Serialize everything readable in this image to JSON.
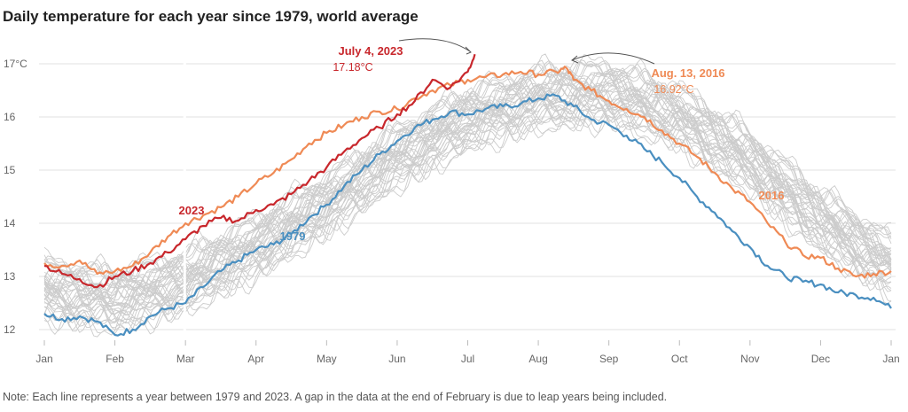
{
  "title": "Daily temperature for each year since 1979, world average",
  "note": "Note: Each line represents a year between 1979 and 2023. A gap in the data at the end of February is due to leap years being included.",
  "colors": {
    "background_years": "#cccccc",
    "y2023": "#c8272c",
    "y2016": "#ef8a55",
    "y1979": "#4a8fc0",
    "grid": "#e2e2e2"
  },
  "chart_data": {
    "type": "line",
    "title": "Daily temperature for each year since 1979, world average",
    "xlabel": "",
    "ylabel": "",
    "x_unit": "month",
    "x_ticks": [
      "Jan",
      "Feb",
      "Mar",
      "Apr",
      "May",
      "Jun",
      "Jul",
      "Aug",
      "Sep",
      "Oct",
      "Nov",
      "Dec",
      "Jan"
    ],
    "y_ticks": [
      "17°C",
      "16",
      "15",
      "14",
      "13",
      "12"
    ],
    "ylim": [
      11.9,
      17.25
    ],
    "grid": true,
    "series": [
      {
        "name": "2023",
        "x": [
          0,
          0.25,
          0.5,
          0.75,
          1.0,
          1.25,
          1.5,
          1.75,
          2.0,
          2.25,
          2.5,
          2.75,
          3.0,
          3.25,
          3.5,
          3.75,
          4.0,
          4.25,
          4.5,
          4.75,
          5.0,
          5.25,
          5.5,
          5.75,
          6.0,
          6.1
        ],
        "values": [
          13.2,
          13.05,
          12.95,
          12.8,
          13.0,
          13.1,
          13.25,
          13.45,
          13.7,
          13.95,
          14.1,
          14.05,
          14.25,
          14.35,
          14.55,
          14.8,
          15.05,
          15.35,
          15.6,
          15.8,
          16.05,
          16.3,
          16.7,
          16.55,
          16.85,
          17.18
        ]
      },
      {
        "name": "2016",
        "x": [
          0,
          0.25,
          0.5,
          0.75,
          1.0,
          1.25,
          1.5,
          1.75,
          2.0,
          2.25,
          2.5,
          2.75,
          3.0,
          3.25,
          3.5,
          3.75,
          4.0,
          4.25,
          4.5,
          4.75,
          5.0,
          5.25,
          5.5,
          5.75,
          6.0,
          6.25,
          6.5,
          6.75,
          7.0,
          7.25,
          7.4,
          7.5,
          7.75,
          8.0,
          8.25,
          8.5,
          8.75,
          9.0,
          9.25,
          9.5,
          9.75,
          10.0,
          10.25,
          10.5,
          10.75,
          11.0,
          11.25,
          11.5,
          11.75,
          12.0
        ],
        "values": [
          13.25,
          13.2,
          13.3,
          13.05,
          13.1,
          13.2,
          13.45,
          13.75,
          14.0,
          14.15,
          14.3,
          14.5,
          14.75,
          14.95,
          15.2,
          15.5,
          15.7,
          15.85,
          16.0,
          16.1,
          16.15,
          16.35,
          16.5,
          16.6,
          16.7,
          16.75,
          16.8,
          16.85,
          16.8,
          16.85,
          16.92,
          16.7,
          16.5,
          16.3,
          16.15,
          16.0,
          15.75,
          15.5,
          15.25,
          14.95,
          14.65,
          14.4,
          14.0,
          13.65,
          13.4,
          13.35,
          13.15,
          13.0,
          13.05,
          13.1
        ]
      },
      {
        "name": "1979",
        "x": [
          0,
          0.25,
          0.5,
          0.75,
          1.0,
          1.25,
          1.5,
          1.75,
          2.0,
          2.25,
          2.5,
          2.75,
          3.0,
          3.25,
          3.5,
          3.75,
          4.0,
          4.25,
          4.5,
          4.75,
          5.0,
          5.25,
          5.5,
          5.75,
          6.0,
          6.25,
          6.5,
          6.75,
          7.0,
          7.25,
          7.5,
          7.75,
          8.0,
          8.25,
          8.5,
          8.75,
          9.0,
          9.25,
          9.5,
          9.75,
          10.0,
          10.25,
          10.5,
          10.75,
          11.0,
          11.25,
          11.5,
          11.75,
          12.0
        ],
        "values": [
          12.3,
          12.2,
          12.25,
          12.15,
          11.9,
          12.0,
          12.25,
          12.4,
          12.5,
          12.8,
          13.1,
          13.3,
          13.5,
          13.6,
          13.8,
          14.1,
          14.35,
          14.7,
          15.0,
          15.3,
          15.55,
          15.8,
          15.95,
          16.1,
          16.05,
          16.15,
          16.2,
          16.25,
          16.35,
          16.4,
          16.2,
          15.95,
          15.85,
          15.65,
          15.4,
          15.15,
          14.85,
          14.5,
          14.2,
          13.85,
          13.55,
          13.2,
          13.0,
          12.9,
          12.85,
          12.7,
          12.65,
          12.6,
          12.4
        ]
      }
    ]
  },
  "annotations": {
    "label_2023": "2023",
    "label_2016": "2016",
    "label_1979": "1979",
    "max_2023_date": "July 4, 2023",
    "max_2023_value": "17.18°C",
    "max_2016_date": "Aug. 13, 2016",
    "max_2016_value": "16.92°C"
  }
}
